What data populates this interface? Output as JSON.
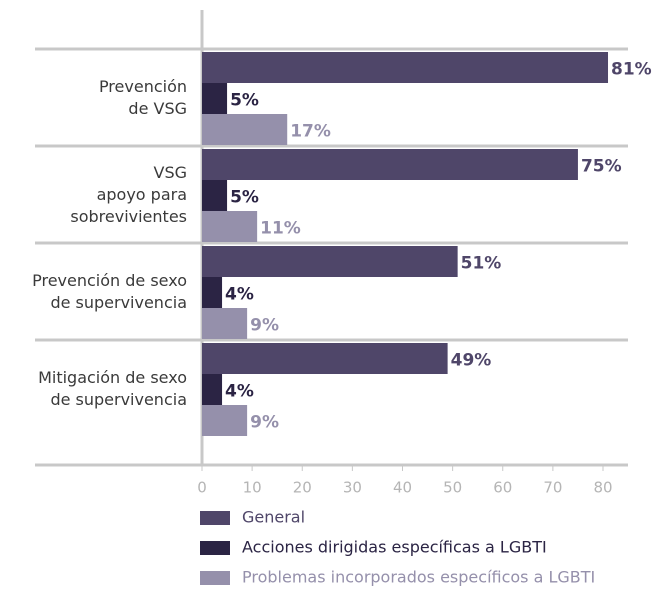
{
  "chart_data": {
    "type": "hbar",
    "categories": [
      [
        "Prevención",
        "de VSG"
      ],
      [
        "VSG",
        "apoyo para",
        "sobrevivientes"
      ],
      [
        "Prevención de sexo",
        "de supervivencia"
      ],
      [
        "Mitigación de sexo",
        "de supervivencia"
      ]
    ],
    "series": [
      {
        "name": "General",
        "color": "#4f4669",
        "values": [
          81,
          75,
          51,
          49
        ],
        "value_labels": [
          "81%",
          "75%",
          "51%",
          "49%"
        ]
      },
      {
        "name": "Acciones dirigidas específicas a LGBTI",
        "color": "#2b2444",
        "values": [
          5,
          5,
          4,
          4
        ],
        "value_labels": [
          "5%",
          "5%",
          "4%",
          "4%"
        ]
      },
      {
        "name": "Problemas incorporados específicos a LGBTI",
        "color": "#9590ab",
        "values": [
          17,
          11,
          9,
          9
        ],
        "value_labels": [
          "17%",
          "11%",
          "9%",
          "9%"
        ]
      }
    ],
    "xlim": [
      0,
      80
    ],
    "xticks": [
      0,
      10,
      20,
      30,
      40,
      50,
      60,
      70,
      80
    ]
  }
}
